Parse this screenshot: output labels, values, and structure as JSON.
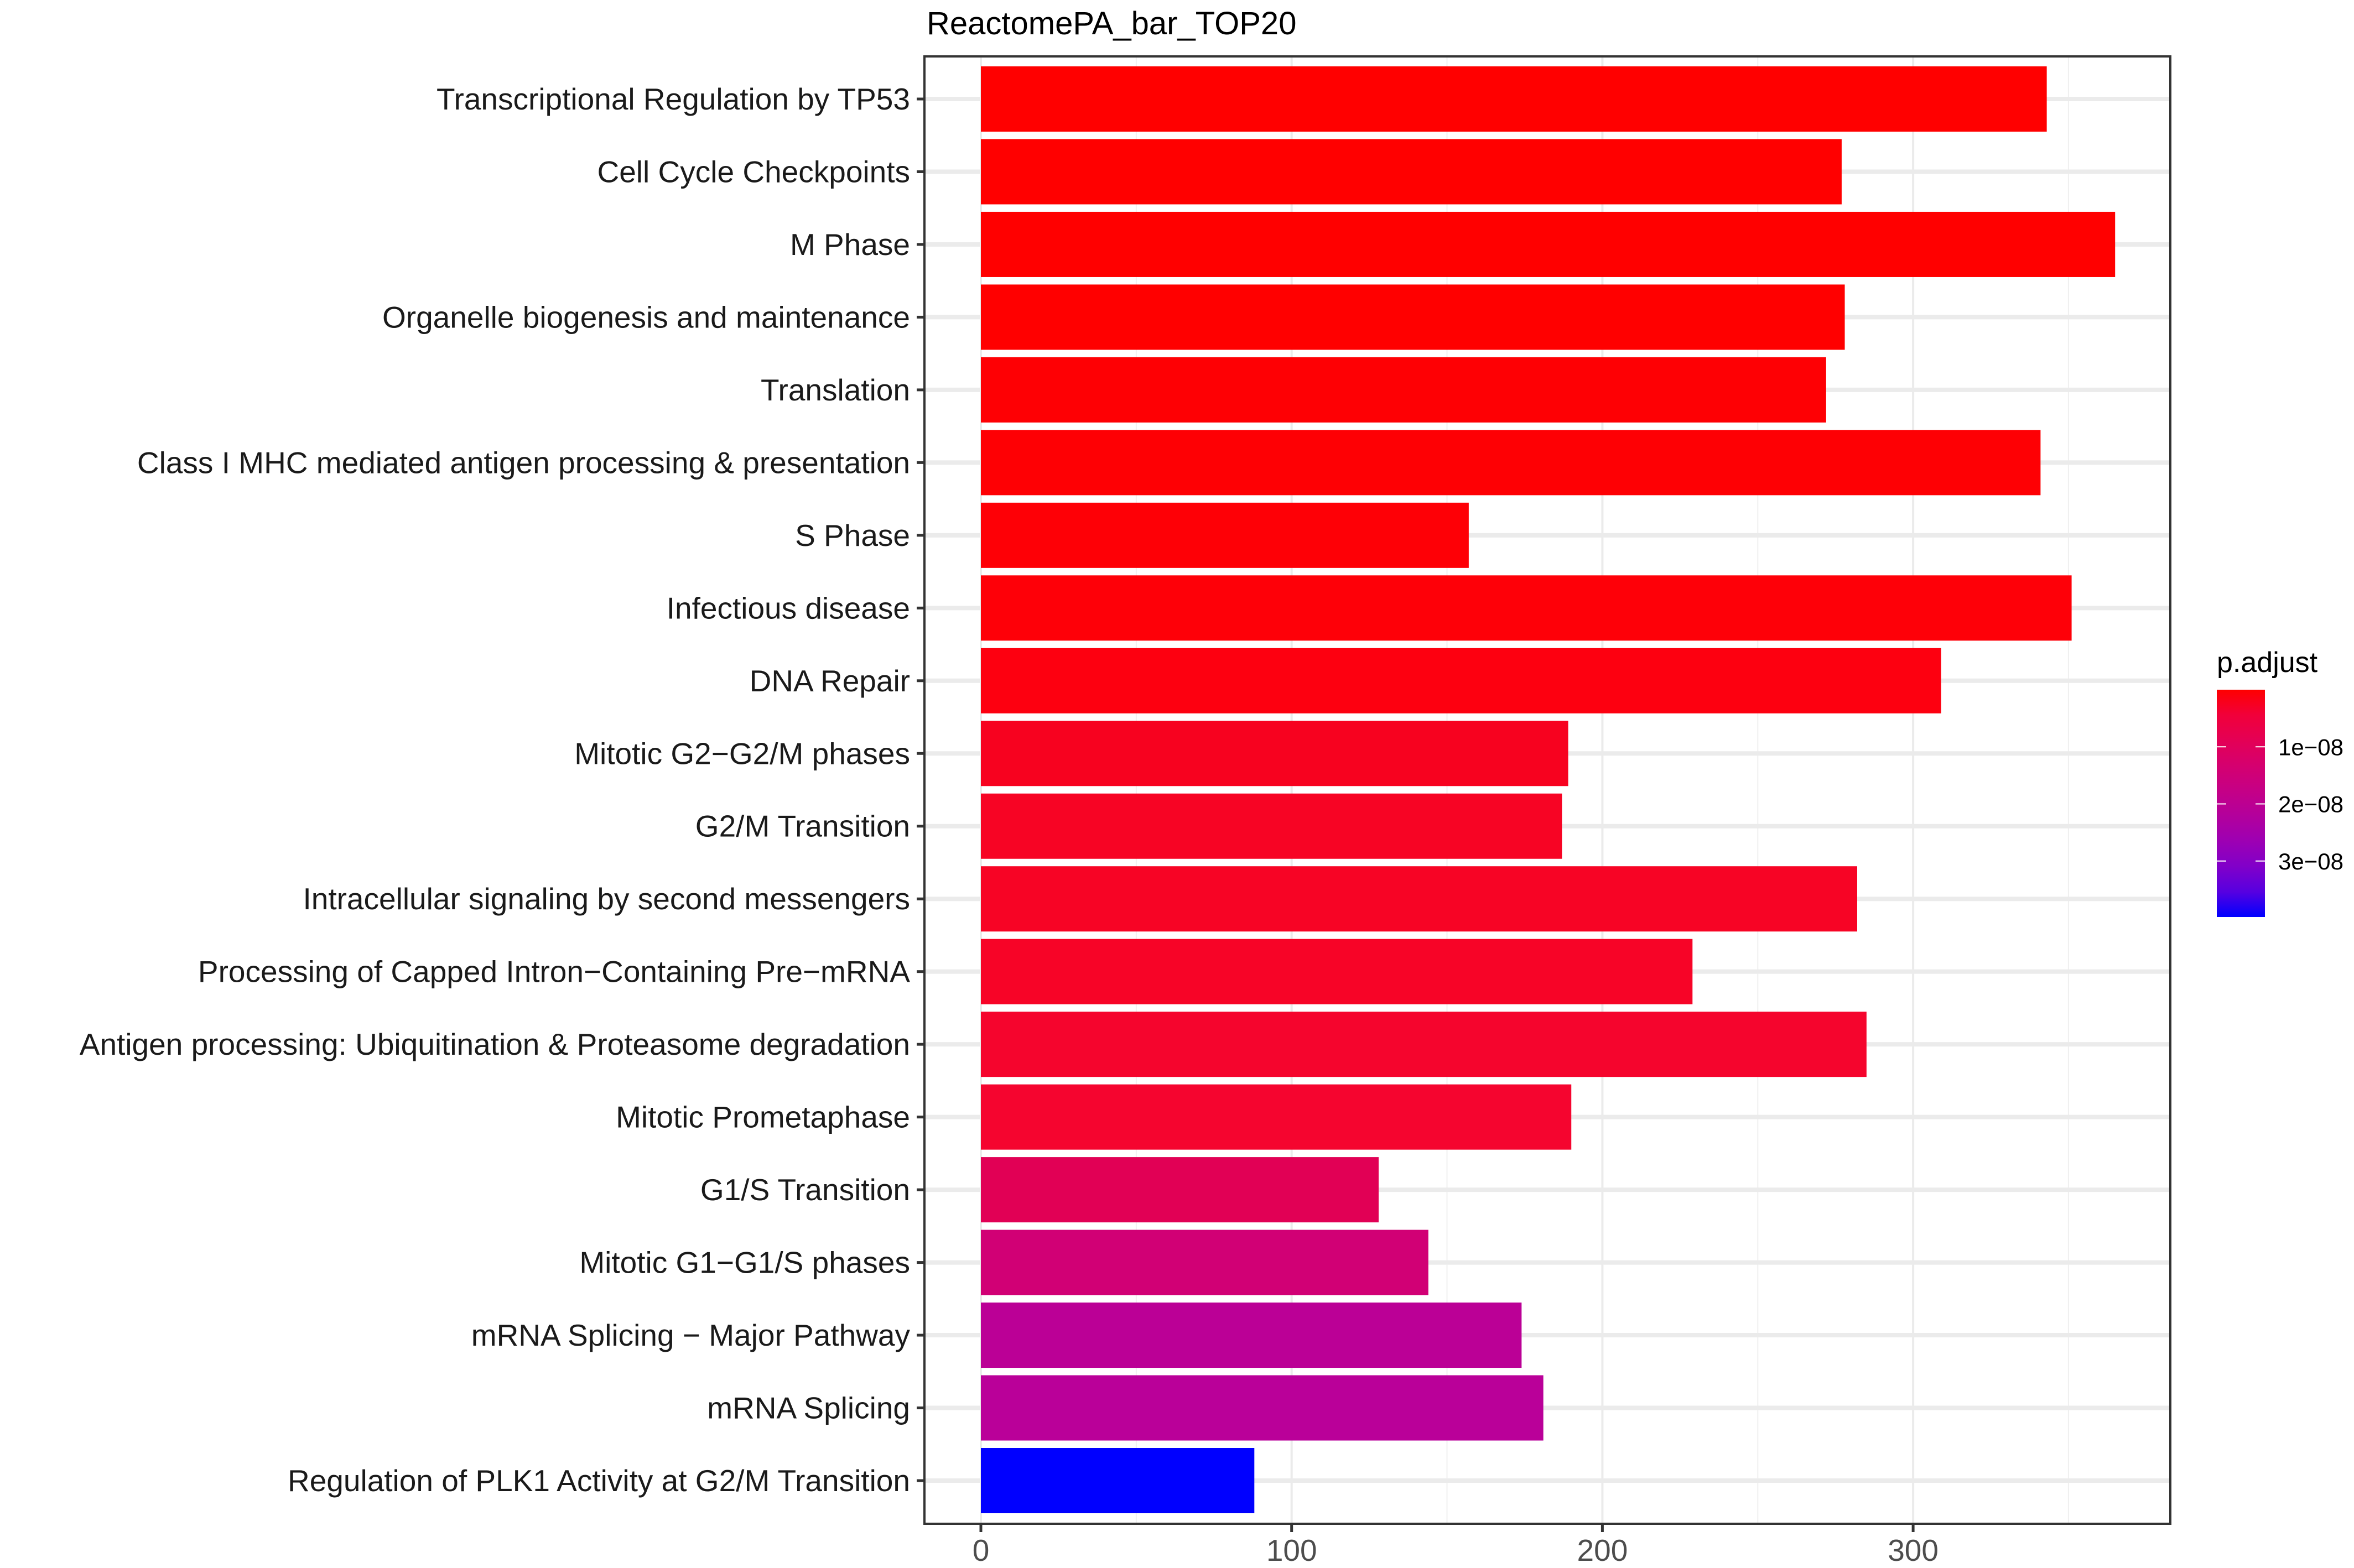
{
  "chart_data": {
    "type": "bar",
    "orientation": "horizontal",
    "title": "ReactomePA_bar_TOP20",
    "xlabel": "",
    "ylabel": "",
    "xlim": [
      0,
      380
    ],
    "x_ticks": [
      0,
      100,
      200,
      300
    ],
    "x_tick_labels": [
      "0",
      "100",
      "200",
      "300"
    ],
    "grid": true,
    "categories": [
      "Transcriptional Regulation by TP53",
      "Cell Cycle Checkpoints",
      "M Phase",
      "Organelle biogenesis and maintenance",
      "Translation",
      "Class I MHC mediated antigen processing & presentation",
      "S Phase",
      "Infectious disease",
      "DNA Repair",
      "Mitotic G2−G2/M phases",
      "G2/M Transition",
      "Intracellular signaling by second messengers",
      "Processing of Capped Intron−Containing Pre−mRNA",
      "Antigen processing: Ubiquitination & Proteasome degradation",
      "Mitotic Prometaphase",
      "G1/S Transition",
      "Mitotic G1−G1/S phases",
      "mRNA Splicing − Major Pathway",
      "mRNA Splicing",
      "Regulation of PLK1 Activity at G2/M Transition"
    ],
    "values": [
      343,
      277,
      365,
      278,
      272,
      341,
      157,
      351,
      309,
      189,
      187,
      282,
      229,
      285,
      190,
      128,
      144,
      174,
      181,
      88
    ],
    "p_adjust": [
      1e-15,
      1e-14,
      1e-14,
      5e-14,
      1e-13,
      5e-13,
      1e-12,
      5e-12,
      1e-10,
      4e-09,
      4.5e-09,
      4e-09,
      4.5e-09,
      5e-09,
      5e-09,
      1.1e-08,
      1.6e-08,
      2.3e-08,
      2.35e-08,
      3.98e-08
    ],
    "fill_colors": [
      "#FF0000",
      "#FF0000",
      "#FF0000",
      "#FF0000",
      "#FE0004",
      "#FE0004",
      "#FE0006",
      "#FE0008",
      "#FD0010",
      "#F7021F",
      "#F70424",
      "#F70425",
      "#F70427",
      "#F5052D",
      "#F5052F",
      "#E10055",
      "#D10075",
      "#BB0096",
      "#BA0099",
      "#0000FF"
    ],
    "legend": {
      "title": "p.adjust",
      "type": "colorbar",
      "placement": "right",
      "range": [
        0,
        3.98e-08
      ],
      "ticks": [
        1e-08,
        2e-08,
        3e-08
      ],
      "tick_labels": [
        "1e−08",
        "2e−08",
        "3e−08"
      ],
      "low_color": "#FF0000",
      "high_color": "#0000FF",
      "gradient_stops": [
        "#FF0000",
        "#F1003A",
        "#E40055",
        "#D5006F",
        "#C50086",
        "#B3009C",
        "#9D00B3",
        "#8100C9",
        "#5700E0",
        "#0000FF"
      ]
    }
  }
}
